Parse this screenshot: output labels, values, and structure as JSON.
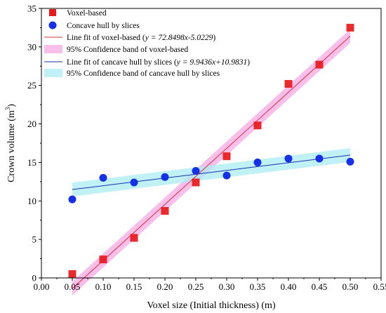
{
  "chart_data": {
    "type": "scatter",
    "title": "",
    "xlabel": "Voxel size (Initial thickness) (m)",
    "ylabel": "Crown volume (m³)",
    "ylabel_base": "Crown volume (m",
    "ylabel_sup": "3",
    "ylabel_tail": ")",
    "xlim": [
      0.0,
      0.55
    ],
    "ylim": [
      0,
      35
    ],
    "xticks": [
      "0.00",
      "0.05",
      "0.10",
      "0.15",
      "0.20",
      "0.25",
      "0.30",
      "0.35",
      "0.40",
      "0.45",
      "0.50",
      "0.55"
    ],
    "yticks": [
      "0",
      "5",
      "10",
      "15",
      "20",
      "25",
      "30",
      "35"
    ],
    "grid": false,
    "legend_position": "top-left",
    "series": [
      {
        "name": "Voxel-based",
        "marker": "square",
        "color": "#e8191c",
        "x": [
          0.05,
          0.1,
          0.15,
          0.2,
          0.25,
          0.3,
          0.35,
          0.4,
          0.45,
          0.5
        ],
        "y": [
          0.5,
          2.4,
          5.2,
          8.7,
          12.4,
          15.8,
          19.8,
          25.2,
          27.7,
          32.5
        ]
      },
      {
        "name": "Concave hull by slices",
        "marker": "circle",
        "color": "#1530e6",
        "x": [
          0.05,
          0.1,
          0.15,
          0.2,
          0.25,
          0.3,
          0.35,
          0.4,
          0.45,
          0.5
        ],
        "y": [
          10.2,
          13.0,
          12.4,
          13.1,
          13.9,
          13.3,
          15.0,
          15.5,
          15.5,
          15.1
        ]
      }
    ],
    "fits": [
      {
        "name_prefix": "Line fit of voxel-based (",
        "name_eq": "y = 72.8498x-5.0229",
        "name_suffix": ")",
        "slope": 72.8498,
        "intercept": -5.0229,
        "x_range": [
          0.05,
          0.5
        ],
        "color": "#d8303a",
        "band_name": "95% Confidence band of voxel-based",
        "band_color": "#f7a8e3",
        "band_halfwidth": 0.9
      },
      {
        "name_prefix": "Line fit of cancave hull by slices (",
        "name_eq": "y = 9.9436x+10.9831",
        "name_suffix": ")",
        "slope": 9.9436,
        "intercept": 10.9831,
        "x_range": [
          0.05,
          0.5
        ],
        "color": "#1a2fb0",
        "band_name": "95% Confidence band of cancave hull by slices",
        "band_color": "#a9ecf3",
        "band_halfwidth": 0.9
      }
    ]
  }
}
